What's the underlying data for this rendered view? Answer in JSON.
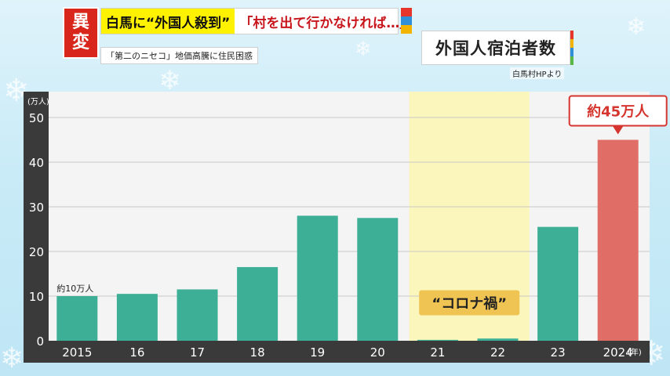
{
  "headline": {
    "badge_line1": "異",
    "badge_line2": "変",
    "yellow_text": "白馬に“外国人殺到”",
    "red_text": "「村を出て行かなければ…」",
    "subheadline": "「第二のニセコ」地価高騰に住民困惑"
  },
  "chart_data": {
    "type": "bar",
    "title": "外国人宿泊者数",
    "source": "白馬村HPより",
    "ylabel": "(万人)",
    "xlabel": "(年)",
    "ylim": [
      0,
      50
    ],
    "yticks": [
      "0",
      "10",
      "20",
      "30",
      "40",
      "50"
    ],
    "categories": [
      "2015",
      "16",
      "17",
      "18",
      "19",
      "20",
      "21",
      "22",
      "23",
      "2024"
    ],
    "values": [
      10,
      10.5,
      11.5,
      16.5,
      28,
      27.5,
      0.2,
      0.5,
      25.5,
      45
    ],
    "highlight_index": 9,
    "annotations": {
      "first_bar_label": "約10万人",
      "last_bar_label": "約45万人",
      "covid_label": "“コロナ禍”",
      "covid_range": [
        "21",
        "22"
      ]
    },
    "colors": {
      "bar": "#3daf96",
      "highlight_bar": "#e06e66",
      "covid_band": "#fbf6bc",
      "callout_border": "#d5352e",
      "callout_text": "#d5352e",
      "covid_label_bg": "#f0c453"
    }
  }
}
